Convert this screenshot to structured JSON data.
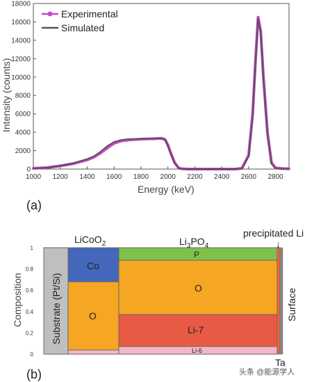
{
  "colors": {
    "experimental": "#cc44cc",
    "simulated": "#555555",
    "substrate": "#bfbfbf",
    "co": "#4466bb",
    "o": "#f5a623",
    "li7": "#e95a45",
    "li6": "#f4b6c2",
    "p": "#7dc24a",
    "precipitated": "#e8643a",
    "ta": "#888888"
  },
  "chart_data": [
    {
      "type": "line",
      "title": "",
      "xlabel": "Energy (keV)",
      "ylabel": "Intensity (counts)",
      "xlim": [
        1000,
        2900
      ],
      "ylim": [
        0,
        18000
      ],
      "xticks": [
        "1000",
        "1200",
        "1400",
        "1600",
        "1800",
        "2000",
        "2200",
        "2400",
        "2600",
        "2800"
      ],
      "yticks": [
        "0",
        "2000",
        "4000",
        "6000",
        "8000",
        "10000",
        "12000",
        "14000",
        "16000",
        "18000"
      ],
      "legend_position": "top-left",
      "series": [
        {
          "name": "Experimental",
          "x": [
            1000,
            1100,
            1200,
            1300,
            1400,
            1450,
            1500,
            1550,
            1600,
            1650,
            1700,
            1800,
            1900,
            1950,
            1980,
            2000,
            2020,
            2050,
            2080,
            2100,
            2150,
            2200,
            2300,
            2400,
            2500,
            2550,
            2600,
            2630,
            2650,
            2670,
            2690,
            2710,
            2740,
            2770,
            2800,
            2850,
            2900
          ],
          "y": [
            80,
            150,
            350,
            600,
            1000,
            1300,
            1750,
            2300,
            2800,
            3050,
            3150,
            3250,
            3300,
            3350,
            3200,
            2600,
            1800,
            700,
            120,
            40,
            0,
            0,
            0,
            0,
            0,
            80,
            1500,
            6000,
            11500,
            16500,
            15000,
            10000,
            4000,
            700,
            120,
            50,
            40
          ]
        },
        {
          "name": "Simulated",
          "x": [
            1000,
            1100,
            1200,
            1300,
            1400,
            1450,
            1500,
            1550,
            1600,
            1650,
            1700,
            1800,
            1900,
            1950,
            1980,
            2000,
            2020,
            2050,
            2080,
            2100,
            2150,
            2200,
            2300,
            2400,
            2500,
            2550,
            2600,
            2630,
            2650,
            2670,
            2690,
            2710,
            2740,
            2770,
            2800,
            2850,
            2900
          ],
          "y": [
            60,
            150,
            350,
            650,
            1100,
            1400,
            1900,
            2500,
            2950,
            3150,
            3250,
            3300,
            3350,
            3350,
            3200,
            2550,
            1700,
            600,
            90,
            30,
            0,
            0,
            0,
            0,
            0,
            60,
            1400,
            5800,
            11300,
            16400,
            14900,
            9800,
            3800,
            600,
            100,
            40,
            30
          ]
        }
      ]
    },
    {
      "type": "bar",
      "title": "",
      "xlabel": "",
      "ylabel": "Composition",
      "ylim": [
        0,
        1
      ],
      "yticks": [
        "0",
        "0.2",
        "0.4",
        "0.6",
        "0.8",
        "1"
      ],
      "layers": [
        {
          "name": "Substrate (Pt/Si)",
          "segments": [
            {
              "label": "Substrate (Pt/Si)",
              "from": 0,
              "to": 1,
              "color_key": "substrate"
            }
          ]
        },
        {
          "name": "LiCoO2",
          "segments": [
            {
              "label": "",
              "from": 0,
              "to": 0.04,
              "color_key": "li6"
            },
            {
              "label": "O",
              "from": 0.04,
              "to": 0.68,
              "color_key": "o"
            },
            {
              "label": "Co",
              "from": 0.68,
              "to": 1,
              "color_key": "co"
            }
          ]
        },
        {
          "name": "Li3PO4",
          "segments": [
            {
              "label": "Li-6",
              "from": 0,
              "to": 0.07,
              "color_key": "li6"
            },
            {
              "label": "Li-7",
              "from": 0.07,
              "to": 0.37,
              "color_key": "li7"
            },
            {
              "label": "O",
              "from": 0.37,
              "to": 0.88,
              "color_key": "o"
            },
            {
              "label": "P",
              "from": 0.88,
              "to": 1,
              "color_key": "p"
            }
          ]
        },
        {
          "name": "precipitated Li",
          "segments": [
            {
              "label": "",
              "from": 0,
              "to": 1,
              "color_key": "precipitated"
            }
          ]
        },
        {
          "name": "Ta",
          "segments": [
            {
              "label": "",
              "from": 0,
              "to": 1,
              "color_key": "ta"
            }
          ]
        }
      ]
    }
  ],
  "text": {
    "legend_experimental": "Experimental",
    "legend_simulated": "Simulated",
    "panel_a": "(a)",
    "panel_b": "(b)",
    "hdr_licoo2_main": "LiCoO",
    "hdr_licoo2_sub": "2",
    "hdr_li3po4_a": "Li",
    "hdr_li3po4_sub1": "3",
    "hdr_li3po4_b": "PO",
    "hdr_li3po4_sub2": "4",
    "hdr_precip": "precipitated Li",
    "arrow": "↓",
    "surface": "Surface",
    "substrate": "Substrate (Pt/Si)",
    "ta": "Ta",
    "watermark": "头条 @能源学人"
  }
}
